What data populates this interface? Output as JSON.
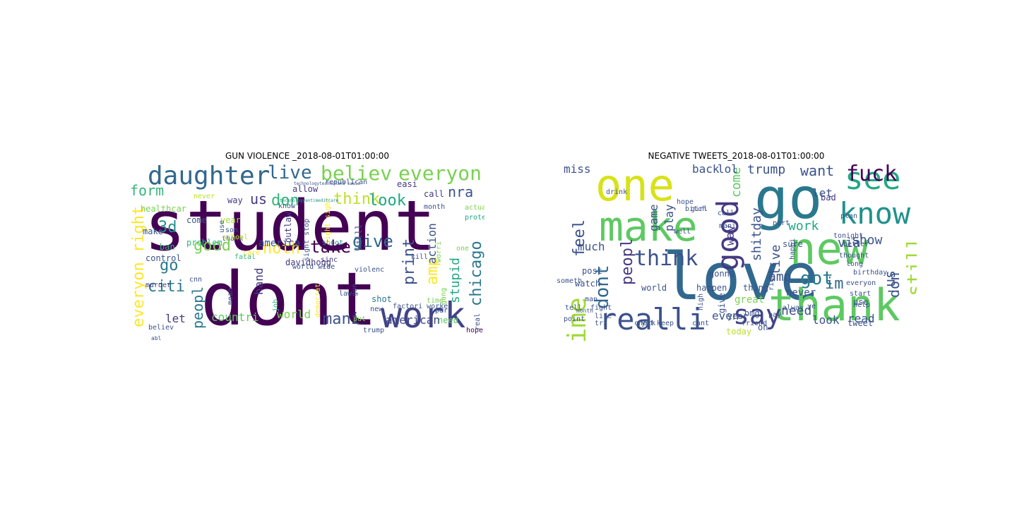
{
  "panels": [
    {
      "title": "GUN VIOLENCE _2018-08-01T01:00:00",
      "words": [
        {
          "t": "student",
          "c": "#440154"
        },
        {
          "t": "dont",
          "c": "#440154"
        },
        {
          "t": "work",
          "c": "#414487"
        },
        {
          "t": "daughter",
          "c": "#31688e"
        },
        {
          "t": "believ",
          "c": "#7ad151"
        },
        {
          "t": "everyon",
          "c": "#7ad151"
        },
        {
          "t": "live",
          "c": "#31688e"
        },
        {
          "t": "form",
          "c": "#35b779"
        },
        {
          "t": "us",
          "c": "#443983"
        },
        {
          "t": "don",
          "c": "#35b779"
        },
        {
          "t": "think",
          "c": "#bddf26"
        },
        {
          "t": "look",
          "c": "#22a884"
        },
        {
          "t": "nra",
          "c": "#3b528b"
        },
        {
          "t": "everyon right",
          "c": "#fde725"
        },
        {
          "t": "3d",
          "c": "#21918c"
        },
        {
          "t": "good",
          "c": "#7ad151"
        },
        {
          "t": "go",
          "c": "#2a788e"
        },
        {
          "t": "citi",
          "c": "#2a788e"
        },
        {
          "t": "peopl",
          "c": "#2a788e"
        },
        {
          "t": "noth",
          "c": "#fde725"
        },
        {
          "t": "take",
          "c": "#440154"
        },
        {
          "t": "give",
          "c": "#31688e"
        },
        {
          "t": "print",
          "c": "#3b528b"
        },
        {
          "t": "amp",
          "c": "#fde725"
        },
        {
          "t": "action",
          "c": "#3b528b"
        },
        {
          "t": "chicago",
          "c": "#2a788e"
        },
        {
          "t": "stupid",
          "c": "#22a884"
        },
        {
          "t": "america",
          "c": "#3b528b"
        },
        {
          "t": "hand",
          "c": "#443983"
        },
        {
          "t": "countri",
          "c": "#5ec962"
        },
        {
          "t": "world",
          "c": "#7ad151"
        },
        {
          "t": "mani",
          "c": "#3b528b"
        },
        {
          "t": "american",
          "c": "#414487"
        },
        {
          "t": "let",
          "c": "#443983"
        },
        {
          "t": "healthcar",
          "c": "#7ad151"
        },
        {
          "t": "way",
          "c": "#443983"
        },
        {
          "t": "come",
          "c": "#3b528b"
        },
        {
          "t": "year",
          "c": "#a0da39"
        },
        {
          "t": "make",
          "c": "#3b528b"
        },
        {
          "t": "problem",
          "c": "#35b779"
        },
        {
          "t": "control",
          "c": "#3b528b"
        },
        {
          "t": "shoot",
          "c": "#21918c"
        },
        {
          "t": "killl",
          "c": "#3b528b"
        },
        {
          "t": "davidhogg",
          "c": "#443983"
        },
        {
          "t": "ban",
          "c": "#35b779"
        },
        {
          "t": "republican",
          "c": "#3b528b"
        },
        {
          "t": "allow",
          "c": "#443983"
        },
        {
          "t": "easi",
          "c": "#443983"
        },
        {
          "t": "call",
          "c": "#443983"
        },
        {
          "t": "month",
          "c": "#3b528b"
        },
        {
          "t": "actual",
          "c": "#7ad151"
        },
        {
          "t": "protect",
          "c": "#22a884"
        },
        {
          "t": "murder",
          "c": "#443983"
        },
        {
          "t": "believ",
          "c": "#3b528b"
        },
        {
          "t": "shot",
          "c": "#2a788e"
        },
        {
          "t": "gun",
          "c": "#3b528b"
        },
        {
          "t": "violenc",
          "c": "#3b528b"
        },
        {
          "t": "kill",
          "c": "#3b528b"
        },
        {
          "t": "worri",
          "c": "#7ad151"
        },
        {
          "t": "law",
          "c": "#3b528b"
        },
        {
          "t": "new",
          "c": "#3b528b"
        },
        {
          "t": "need",
          "c": "#5ec962"
        },
        {
          "t": "hope",
          "c": "#440154"
        },
        {
          "t": "put",
          "c": "#7ad151"
        },
        {
          "t": "factori worker",
          "c": "#3b528b"
        },
        {
          "t": "thank",
          "c": "#3b528b"
        },
        {
          "t": "son",
          "c": "#3b528b"
        },
        {
          "t": "school",
          "c": "#bddf26"
        },
        {
          "t": "fatal",
          "c": "#35b779"
        },
        {
          "t": "care",
          "c": "#fde725"
        },
        {
          "t": "outlaw",
          "c": "#443983"
        },
        {
          "t": "sight stop",
          "c": "#3b528b"
        },
        {
          "t": "world wide",
          "c": "#3b528b"
        },
        {
          "t": "sinc",
          "c": "#443983"
        },
        {
          "t": "gang",
          "c": "#7ad151"
        },
        {
          "t": "real",
          "c": "#3b528b"
        },
        {
          "t": "mean",
          "c": "#3b528b"
        },
        {
          "t": "job",
          "c": "#35b779"
        },
        {
          "t": "democrat",
          "c": "#fde725"
        },
        {
          "t": "cnn",
          "c": "#3b528b"
        },
        {
          "t": "abl",
          "c": "#3b528b"
        },
        {
          "t": "trump",
          "c": "#3b528b"
        },
        {
          "t": "time",
          "c": "#7ad151"
        },
        {
          "t": "part",
          "c": "#3b528b"
        },
        {
          "t": "one",
          "c": "#7ad151"
        },
        {
          "t": "never",
          "c": "#bddf26"
        },
        {
          "t": "know",
          "c": "#3b528b"
        },
        {
          "t": "use",
          "c": "#3b528b"
        },
        {
          "t": "sight sight",
          "c": "#fde725"
        },
        {
          "t": "technologytechnoland cause",
          "c": "#3b528b"
        },
        {
          "t": "technologyantimeditcare",
          "c": "#21918c"
        }
      ]
    },
    {
      "title": "NEGATIVE TWEETS_2018-08-01T01:00:00",
      "words": [
        {
          "t": "love",
          "c": "#31688e"
        },
        {
          "t": "one",
          "c": "#d8e219"
        },
        {
          "t": "go",
          "c": "#2a788e"
        },
        {
          "t": "new",
          "c": "#5ec962"
        },
        {
          "t": "thank",
          "c": "#5ec962"
        },
        {
          "t": "make",
          "c": "#5ec962"
        },
        {
          "t": "see",
          "c": "#22a884"
        },
        {
          "t": "know",
          "c": "#21918c"
        },
        {
          "t": "good",
          "c": "#443983"
        },
        {
          "t": "time",
          "c": "#a0da39"
        },
        {
          "t": "realli",
          "c": "#3b528b"
        },
        {
          "t": "say",
          "c": "#414487"
        },
        {
          "t": "think",
          "c": "#3b528b"
        },
        {
          "t": "dont",
          "c": "#31688e"
        },
        {
          "t": "peopl",
          "c": "#443983"
        },
        {
          "t": "fuck",
          "c": "#440154"
        },
        {
          "t": "still",
          "c": "#a0da39"
        },
        {
          "t": "got",
          "c": "#2a788e"
        },
        {
          "t": "im",
          "c": "#31688e"
        },
        {
          "t": "don",
          "c": "#3b528b"
        },
        {
          "t": "us",
          "c": "#3b528b"
        },
        {
          "t": "live",
          "c": "#3b528b"
        },
        {
          "t": "amp",
          "c": "#3b528b"
        },
        {
          "t": "feel",
          "c": "#3b528b"
        },
        {
          "t": "want",
          "c": "#3b528b"
        },
        {
          "t": "trump",
          "c": "#3b528b"
        },
        {
          "t": "let",
          "c": "#3b528b"
        },
        {
          "t": "work",
          "c": "#22a884"
        },
        {
          "t": "via",
          "c": "#3b528b"
        },
        {
          "t": "show",
          "c": "#3b528b"
        },
        {
          "t": "shitday",
          "c": "#3b528b"
        },
        {
          "t": "way",
          "c": "#443983"
        },
        {
          "t": "come",
          "c": "#5ec962"
        },
        {
          "t": "back",
          "c": "#3b528b"
        },
        {
          "t": "lol",
          "c": "#3b528b"
        },
        {
          "t": "game",
          "c": "#3b528b"
        },
        {
          "t": "play",
          "c": "#3b528b"
        },
        {
          "t": "much",
          "c": "#3b528b"
        },
        {
          "t": "miss",
          "c": "#3b528b"
        },
        {
          "t": "even",
          "c": "#3b528b"
        },
        {
          "t": "need",
          "c": "#3b528b"
        },
        {
          "t": "look",
          "c": "#3b528b"
        },
        {
          "t": "read",
          "c": "#3b528b"
        },
        {
          "t": "never",
          "c": "#3b528b"
        },
        {
          "t": "bad",
          "c": "#443983"
        },
        {
          "t": "post",
          "c": "#3b528b"
        },
        {
          "t": "watch",
          "c": "#3b528b"
        },
        {
          "t": "world",
          "c": "#3b528b"
        },
        {
          "t": "oh",
          "c": "#3b528b"
        },
        {
          "t": "gonna",
          "c": "#3b528b"
        },
        {
          "t": "happen",
          "c": "#3b528b"
        },
        {
          "t": "year",
          "c": "#3b528b"
        },
        {
          "t": "thing",
          "c": "#3b528b"
        },
        {
          "t": "use",
          "c": "#3b528b"
        },
        {
          "t": "today",
          "c": "#bddf26"
        },
        {
          "t": "tweet",
          "c": "#3b528b"
        },
        {
          "t": "tonight",
          "c": "#3b528b"
        },
        {
          "t": "sure",
          "c": "#3b528b"
        },
        {
          "t": "well",
          "c": "#3b528b"
        },
        {
          "t": "ye",
          "c": "#3b528b"
        },
        {
          "t": "happi",
          "c": "#3b528b"
        },
        {
          "t": "great",
          "c": "#7ad151"
        },
        {
          "t": "right",
          "c": "#3b528b"
        },
        {
          "t": "high",
          "c": "#3b528b"
        },
        {
          "t": "give",
          "c": "#3b528b"
        },
        {
          "t": "alway",
          "c": "#3b528b"
        },
        {
          "t": "omg",
          "c": "#3b528b"
        },
        {
          "t": "someth",
          "c": "#3b528b"
        },
        {
          "t": "better",
          "c": "#3b528b"
        },
        {
          "t": "thought",
          "c": "#3b528b"
        },
        {
          "t": "long",
          "c": "#3b528b"
        },
        {
          "t": "birthday",
          "c": "#3b528b"
        },
        {
          "t": "friend",
          "c": "#3b528b"
        },
        {
          "t": "cant",
          "c": "#3b528b"
        },
        {
          "t": "keep",
          "c": "#3b528b"
        },
        {
          "t": "check",
          "c": "#3b528b"
        },
        {
          "t": "yet",
          "c": "#3b528b"
        },
        {
          "t": "fight",
          "c": "#3b528b"
        },
        {
          "t": "life",
          "c": "#3b528b"
        },
        {
          "t": "man",
          "c": "#3b528b"
        },
        {
          "t": "girl",
          "c": "#3b528b"
        },
        {
          "t": "mani",
          "c": "#3b528b"
        },
        {
          "t": "part",
          "c": "#3b528b"
        },
        {
          "t": "bitch",
          "c": "#3b528b"
        },
        {
          "t": "drink",
          "c": "#3b528b"
        },
        {
          "t": "hope",
          "c": "#3b528b"
        },
        {
          "t": "everyon",
          "c": "#3b528b"
        },
        {
          "t": "start",
          "c": "#3b528b"
        },
        {
          "t": "help",
          "c": "#3b528b"
        },
        {
          "t": "pay",
          "c": "#3b528b"
        },
        {
          "t": "call",
          "c": "#3b528b"
        },
        {
          "t": "plan",
          "c": "#3b528b"
        },
        {
          "t": "tell",
          "c": "#3b528b"
        },
        {
          "t": "point",
          "c": "#3b528b"
        },
        {
          "t": "month",
          "c": "#3b528b"
        },
        {
          "t": "tri",
          "c": "#3b528b"
        }
      ]
    }
  ]
}
